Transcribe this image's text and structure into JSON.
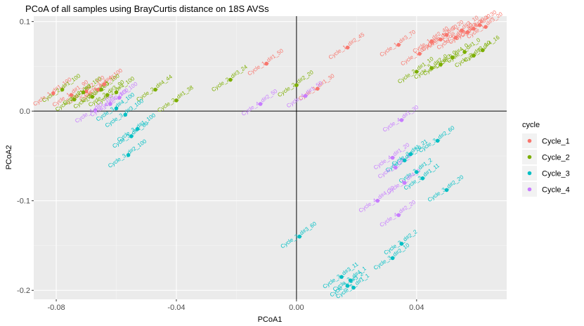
{
  "chart_data": {
    "type": "scatter",
    "title": "PCoA of all samples using BrayCurtis distance on 18S AVSs",
    "xlabel": "PCoA1",
    "ylabel": "PCoA2",
    "xlim": [
      -0.0875,
      0.07
    ],
    "ylim": [
      -0.21,
      0.106
    ],
    "xticks": [
      {
        "value": -0.08,
        "label": "-0.08"
      },
      {
        "value": -0.04,
        "label": "-0.04"
      },
      {
        "value": 0.0,
        "label": "0.00"
      },
      {
        "value": 0.04,
        "label": "0.04"
      }
    ],
    "yticks": [
      {
        "value": 0.1,
        "label": "0.1"
      },
      {
        "value": 0.0,
        "label": "0.0"
      },
      {
        "value": -0.1,
        "label": "-0.1"
      },
      {
        "value": -0.2,
        "label": "-0.2"
      }
    ],
    "reference_lines": {
      "x": 0,
      "y": 0
    },
    "grid": true,
    "legend": {
      "title": "cycle",
      "position": "right"
    },
    "series": [
      {
        "name": "Cycle_1",
        "color": "#F8766D",
        "points": [
          {
            "x": -0.081,
            "y": 0.02,
            "label": "Cycle_1_d#1_100"
          },
          {
            "x": -0.075,
            "y": 0.018,
            "label": "Cycle_1_d#1_90"
          },
          {
            "x": -0.07,
            "y": 0.022,
            "label": "Cycle_1_d#2_100"
          },
          {
            "x": -0.066,
            "y": 0.024,
            "label": "Cycle_1_d#4_95"
          },
          {
            "x": -0.064,
            "y": 0.03,
            "label": "Cycle_1_d#4_100"
          },
          {
            "x": -0.01,
            "y": 0.053,
            "label": "Cycle_1_d#1_50"
          },
          {
            "x": 0.007,
            "y": 0.025,
            "label": "Cycle_1_d#1_30"
          },
          {
            "x": 0.017,
            "y": 0.071,
            "label": "Cycle_1_d#2_45"
          },
          {
            "x": 0.034,
            "y": 0.074,
            "label": "Cycle_1_d#3_70"
          },
          {
            "x": 0.041,
            "y": 0.064,
            "label": "Cycle_1_d#3_60"
          },
          {
            "x": 0.045,
            "y": 0.078,
            "label": "Cycle_1_d#2_40"
          },
          {
            "x": 0.048,
            "y": 0.08,
            "label": "Cycle_1_d#2_30"
          },
          {
            "x": 0.05,
            "y": 0.085,
            "label": "Cycle_1_d#2_20"
          },
          {
            "x": 0.053,
            "y": 0.082,
            "label": "Cycle_1_d#3_40"
          },
          {
            "x": 0.055,
            "y": 0.09,
            "label": "Cycle_1_d#3_10"
          },
          {
            "x": 0.057,
            "y": 0.088,
            "label": "Cycle_1_d#4_10"
          },
          {
            "x": 0.059,
            "y": 0.092,
            "label": "Cycle_1_d#4_20"
          },
          {
            "x": 0.061,
            "y": 0.096,
            "label": "Cycle_1_d#4_30"
          },
          {
            "x": 0.063,
            "y": 0.094,
            "label": "Cycle_1_d#3_20"
          }
        ]
      },
      {
        "name": "Cycle_2",
        "color": "#7CAE00",
        "points": [
          {
            "x": -0.078,
            "y": 0.024,
            "label": "Cycle_2_d#1_100"
          },
          {
            "x": -0.074,
            "y": 0.013,
            "label": "Cycle_2_d#1_90"
          },
          {
            "x": -0.071,
            "y": 0.021,
            "label": "Cycle_2_d#2_100"
          },
          {
            "x": -0.068,
            "y": 0.016,
            "label": "Cycle_2_d#2_80"
          },
          {
            "x": -0.065,
            "y": 0.024,
            "label": "Cycle_2_d#3_100"
          },
          {
            "x": -0.063,
            "y": 0.018,
            "label": "Cycle_2_d#3_90"
          },
          {
            "x": -0.06,
            "y": 0.021,
            "label": "Cycle_2_d#4_100"
          },
          {
            "x": -0.047,
            "y": 0.024,
            "label": "Cycle_2_d#4_44"
          },
          {
            "x": -0.04,
            "y": 0.012,
            "label": "Cycle_2_d#1_38"
          },
          {
            "x": -0.022,
            "y": 0.035,
            "label": "Cycle_2_d#3_24"
          },
          {
            "x": 0.0,
            "y": 0.029,
            "label": "Cycle_2_d#2_20"
          },
          {
            "x": 0.04,
            "y": 0.044,
            "label": "Cycle_2_d#1_10"
          },
          {
            "x": 0.045,
            "y": 0.048,
            "label": "Cycle_2_d#2_0"
          },
          {
            "x": 0.048,
            "y": 0.052,
            "label": "Cycle_2_d#3_0"
          },
          {
            "x": 0.052,
            "y": 0.06,
            "label": "Cycle_2_d#4_0"
          },
          {
            "x": 0.056,
            "y": 0.066,
            "label": "Cycle_2_d#1_0"
          },
          {
            "x": 0.059,
            "y": 0.062,
            "label": "Cycle_2_d#3_10"
          },
          {
            "x": 0.062,
            "y": 0.068,
            "label": "Cycle_2_d#4_16"
          }
        ]
      },
      {
        "name": "Cycle_3",
        "color": "#00BFC4",
        "points": [
          {
            "x": -0.06,
            "y": 0.003,
            "label": "Cycle_3_d#4_100"
          },
          {
            "x": -0.057,
            "y": -0.004,
            "label": "Cycle_3_d#3_100"
          },
          {
            "x": -0.053,
            "y": -0.02,
            "label": "Cycle_3_d#1_100"
          },
          {
            "x": -0.055,
            "y": -0.028,
            "label": "Cycle_3_d#4_80"
          },
          {
            "x": -0.056,
            "y": -0.049,
            "label": "Cycle_3_d#2_100"
          },
          {
            "x": 0.001,
            "y": -0.14,
            "label": "Cycle_3_d#3_60"
          },
          {
            "x": 0.015,
            "y": -0.185,
            "label": "Cycle_3_d#3_11"
          },
          {
            "x": 0.017,
            "y": -0.195,
            "label": "Cycle_3_d#3_2"
          },
          {
            "x": 0.018,
            "y": -0.189,
            "label": "Cycle_3_d#4_1"
          },
          {
            "x": 0.019,
            "y": -0.197,
            "label": "Cycle_3_d#1_1"
          },
          {
            "x": 0.032,
            "y": -0.164,
            "label": "Cycle_3_d#2_10"
          },
          {
            "x": 0.035,
            "y": -0.148,
            "label": "Cycle_3_d#2_2"
          },
          {
            "x": 0.036,
            "y": -0.055,
            "label": "Cycle_3_d#1_20"
          },
          {
            "x": 0.038,
            "y": -0.048,
            "label": "Cycle_3_d#1_21"
          },
          {
            "x": 0.04,
            "y": -0.068,
            "label": "Cycle_3_d#1_2"
          },
          {
            "x": 0.042,
            "y": -0.075,
            "label": "Cycle_3_d#1_11"
          },
          {
            "x": 0.047,
            "y": -0.033,
            "label": "Cycle_3_d#2_60"
          },
          {
            "x": 0.05,
            "y": -0.088,
            "label": "Cycle_3_d#2_20"
          }
        ]
      },
      {
        "name": "Cycle_4",
        "color": "#C77CFF",
        "points": [
          {
            "x": -0.067,
            "y": 0.001,
            "label": "Cycle_4_d#1_100"
          },
          {
            "x": -0.062,
            "y": 0.008,
            "label": "Cycle_4_d#2_100"
          },
          {
            "x": -0.059,
            "y": 0.015,
            "label": "Cycle_4_d#3_100"
          },
          {
            "x": -0.012,
            "y": 0.008,
            "label": "Cycle_4_d#2_50"
          },
          {
            "x": 0.003,
            "y": 0.017,
            "label": "Cycle_4_d#1_50"
          },
          {
            "x": 0.027,
            "y": -0.1,
            "label": "Cycle_4_d#4_20"
          },
          {
            "x": 0.032,
            "y": -0.052,
            "label": "Cycle_4_d#1_20"
          },
          {
            "x": 0.033,
            "y": -0.063,
            "label": "Cycle_4_d#1_0"
          },
          {
            "x": 0.034,
            "y": -0.116,
            "label": "Cycle_4_d#2_20"
          },
          {
            "x": 0.035,
            "y": -0.01,
            "label": "Cycle_4_d#1_30"
          },
          {
            "x": 0.036,
            "y": -0.08,
            "label": "Cycle_4_d#4_0"
          }
        ]
      }
    ]
  }
}
